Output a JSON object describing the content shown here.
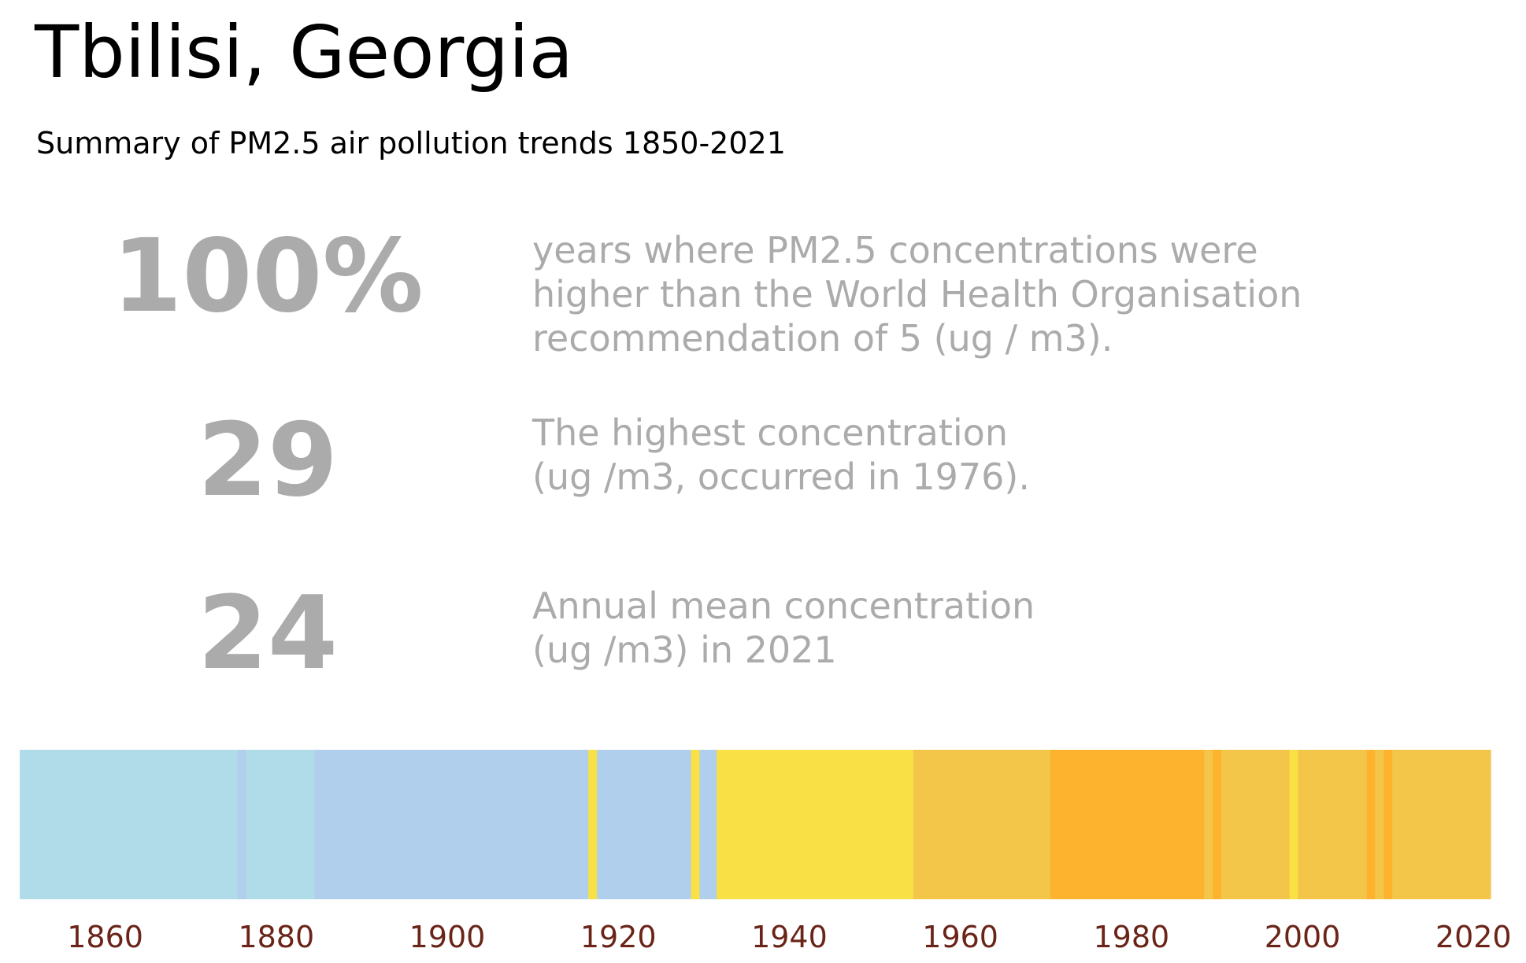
{
  "header": {
    "title": "Tbilisi, Georgia",
    "subtitle": "Summary of PM2.5 air pollution trends 1850-2021"
  },
  "stats": [
    {
      "value": "100%",
      "lines": [
        "years where PM2.5 concentrations were",
        "higher than the World Health Organisation",
        "recommendation of 5 (ug / m3)."
      ]
    },
    {
      "value": "29",
      "lines": [
        "The highest concentration",
        "(ug /m3, occurred in 1976)."
      ]
    },
    {
      "value": "24",
      "lines": [
        "Annual mean concentration",
        "(ug /m3) in 2021"
      ]
    }
  ],
  "chart_data": {
    "type": "heatmap",
    "description_free": true,
    "xlim": [
      1850,
      2022
    ],
    "x_ticks": [
      1860,
      1880,
      1900,
      1920,
      1940,
      1960,
      1980,
      2000,
      2020
    ],
    "grid": false,
    "colors": {
      "light_blue": "#b0dbe8",
      "pale_blue": "#b0cfec",
      "yellow": "#f8e045",
      "gold": "#f3c64a",
      "orange": "#fdb32e",
      "tick_label": "#6b2418"
    },
    "bands": [
      {
        "start": 1850,
        "end": 1875.5,
        "color": "light_blue"
      },
      {
        "start": 1875.5,
        "end": 1876.5,
        "color": "pale_blue"
      },
      {
        "start": 1876.5,
        "end": 1884.5,
        "color": "light_blue"
      },
      {
        "start": 1884.5,
        "end": 1916.5,
        "color": "pale_blue"
      },
      {
        "start": 1916.5,
        "end": 1917.5,
        "color": "yellow"
      },
      {
        "start": 1917.5,
        "end": 1928.5,
        "color": "pale_blue"
      },
      {
        "start": 1928.5,
        "end": 1929.5,
        "color": "yellow"
      },
      {
        "start": 1929.5,
        "end": 1931.5,
        "color": "pale_blue"
      },
      {
        "start": 1931.5,
        "end": 1954.5,
        "color": "yellow"
      },
      {
        "start": 1954.5,
        "end": 1970.5,
        "color": "gold"
      },
      {
        "start": 1970.5,
        "end": 1988.5,
        "color": "orange"
      },
      {
        "start": 1988.5,
        "end": 1989.5,
        "color": "gold"
      },
      {
        "start": 1989.5,
        "end": 1990.5,
        "color": "orange"
      },
      {
        "start": 1990.5,
        "end": 1998.5,
        "color": "gold"
      },
      {
        "start": 1998.5,
        "end": 1999.5,
        "color": "yellow"
      },
      {
        "start": 1999.5,
        "end": 2007.5,
        "color": "gold"
      },
      {
        "start": 2007.5,
        "end": 2008.5,
        "color": "orange"
      },
      {
        "start": 2008.5,
        "end": 2009.5,
        "color": "gold"
      },
      {
        "start": 2009.5,
        "end": 2010.5,
        "color": "orange"
      },
      {
        "start": 2010.5,
        "end": 2022,
        "color": "gold"
      }
    ]
  }
}
